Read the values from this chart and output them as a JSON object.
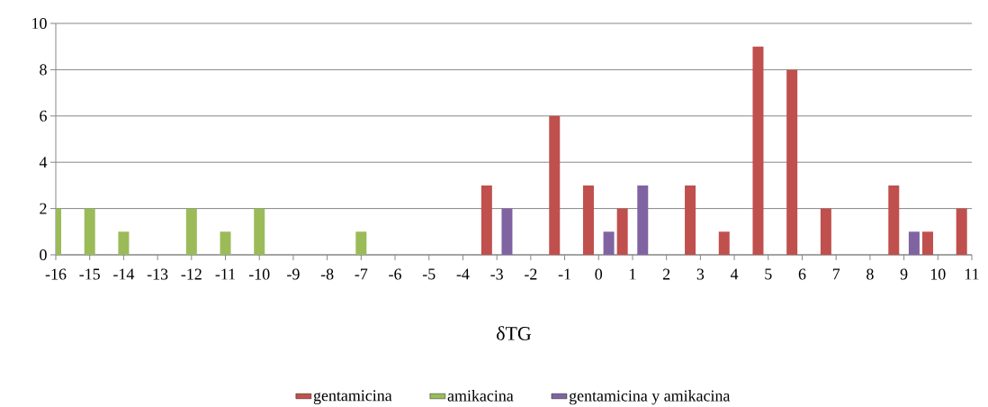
{
  "chart_data": {
    "type": "bar",
    "xlabel": "δTG",
    "xlim": [
      -16,
      11
    ],
    "xticks": [
      -16,
      -15,
      -14,
      -13,
      -12,
      -11,
      -10,
      -9,
      -8,
      -7,
      -6,
      -5,
      -4,
      -3,
      -2,
      -1,
      0,
      1,
      2,
      3,
      4,
      5,
      6,
      7,
      8,
      9,
      10,
      11
    ],
    "ylim": [
      0,
      10
    ],
    "yticks": [
      0,
      2,
      4,
      6,
      8,
      10
    ],
    "grid": "y",
    "legend": "bottom",
    "series": [
      {
        "name": "gentamicina",
        "color": "#c0504d",
        "x": [
          -3.3,
          -1.3,
          -0.3,
          0.7,
          2.7,
          3.7,
          4.7,
          5.7,
          6.7,
          8.7,
          9.7,
          10.7
        ],
        "values": [
          3,
          6,
          3,
          2,
          3,
          1,
          9,
          8,
          2,
          3,
          1,
          2
        ]
      },
      {
        "name": "amikacina",
        "color": "#9bbb59",
        "x": [
          -16,
          -15,
          -14,
          -12,
          -11,
          -10,
          -7
        ],
        "values": [
          2,
          2,
          1,
          2,
          1,
          2,
          1
        ]
      },
      {
        "name": "gentamicina y amikacina",
        "color": "#8064a2",
        "x": [
          -2.7,
          0.3,
          1.3,
          9.3
        ],
        "values": [
          2,
          1,
          3,
          1
        ]
      }
    ]
  }
}
